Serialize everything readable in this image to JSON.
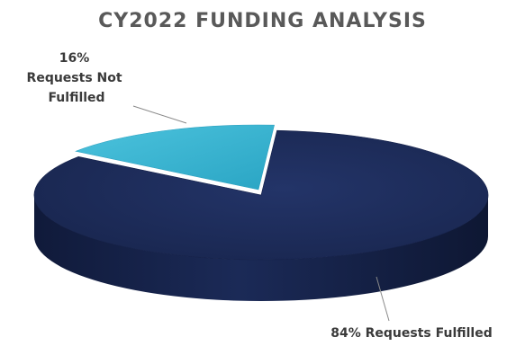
{
  "chart_data": {
    "type": "pie",
    "title": "CY2022 FUNDING ANALYSIS",
    "series": [
      {
        "values": [
          84,
          16
        ]
      }
    ],
    "categories": [
      "Requests Fulfilled",
      "Requests Not Fulfilled"
    ],
    "colors": [
      "#1c2a55",
      "#3ab7d3"
    ],
    "data_labels": [
      {
        "lines": [
          "84% Requests Fulfilled"
        ]
      },
      {
        "lines": [
          "16%",
          "Requests Not",
          "Fulfilled"
        ]
      }
    ],
    "style": "3d-exploded"
  }
}
